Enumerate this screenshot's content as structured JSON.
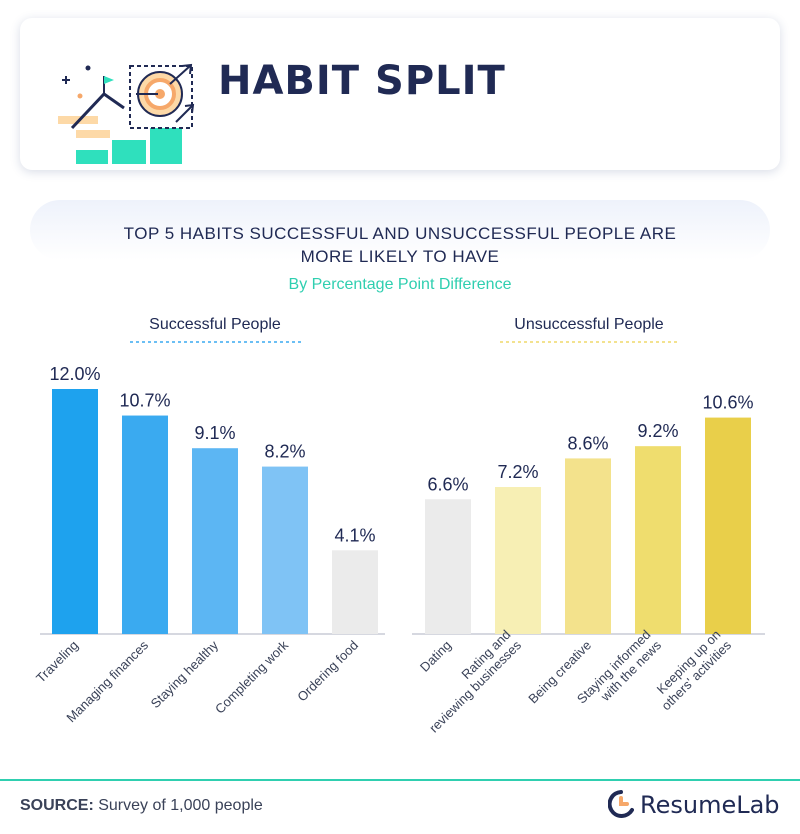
{
  "header": {
    "title": "HABIT SPLIT"
  },
  "chart": {
    "title_line1": "TOP 5 HABITS SUCCESSFUL AND UNSUCCESSFUL PEOPLE ARE",
    "title_line2": "MORE LIKELY TO HAVE",
    "subtitle": "By Percentage Point Difference"
  },
  "chart_data": [
    {
      "type": "bar",
      "title": "Successful People",
      "value_suffix": "%",
      "categories": [
        "Traveling",
        "Managing finances",
        "Staying healthy",
        "Completing work",
        "Ordering food"
      ],
      "values": [
        12.0,
        10.7,
        9.1,
        8.2,
        4.1
      ],
      "colors": [
        "#1ea2ee",
        "#3aaaf0",
        "#5cb6f3",
        "#7fc3f5",
        "#ebebeb"
      ],
      "ylim": [
        0,
        12.0
      ]
    },
    {
      "type": "bar",
      "title": "Unsuccessful People",
      "value_suffix": "%",
      "categories": [
        "Dating",
        "Rating and\nreviewing businesses",
        "Being creative",
        "Staying informed\nwith the news",
        "Keeping up on\nothers' activities"
      ],
      "values": [
        6.6,
        7.2,
        8.6,
        9.2,
        10.6
      ],
      "colors": [
        "#ebebeb",
        "#f7efb4",
        "#f3e28c",
        "#efdd6e",
        "#e9cf4a"
      ],
      "ylim": [
        0,
        12.0
      ]
    }
  ],
  "footer": {
    "source_label": "SOURCE:",
    "source_text": "Survey of 1,000 people",
    "brand": "ResumeLab"
  },
  "colors": {
    "accent": "#2fcfb0",
    "title": "#202a54",
    "underline_left": "#3aaaf0",
    "underline_right": "#efd96a"
  }
}
